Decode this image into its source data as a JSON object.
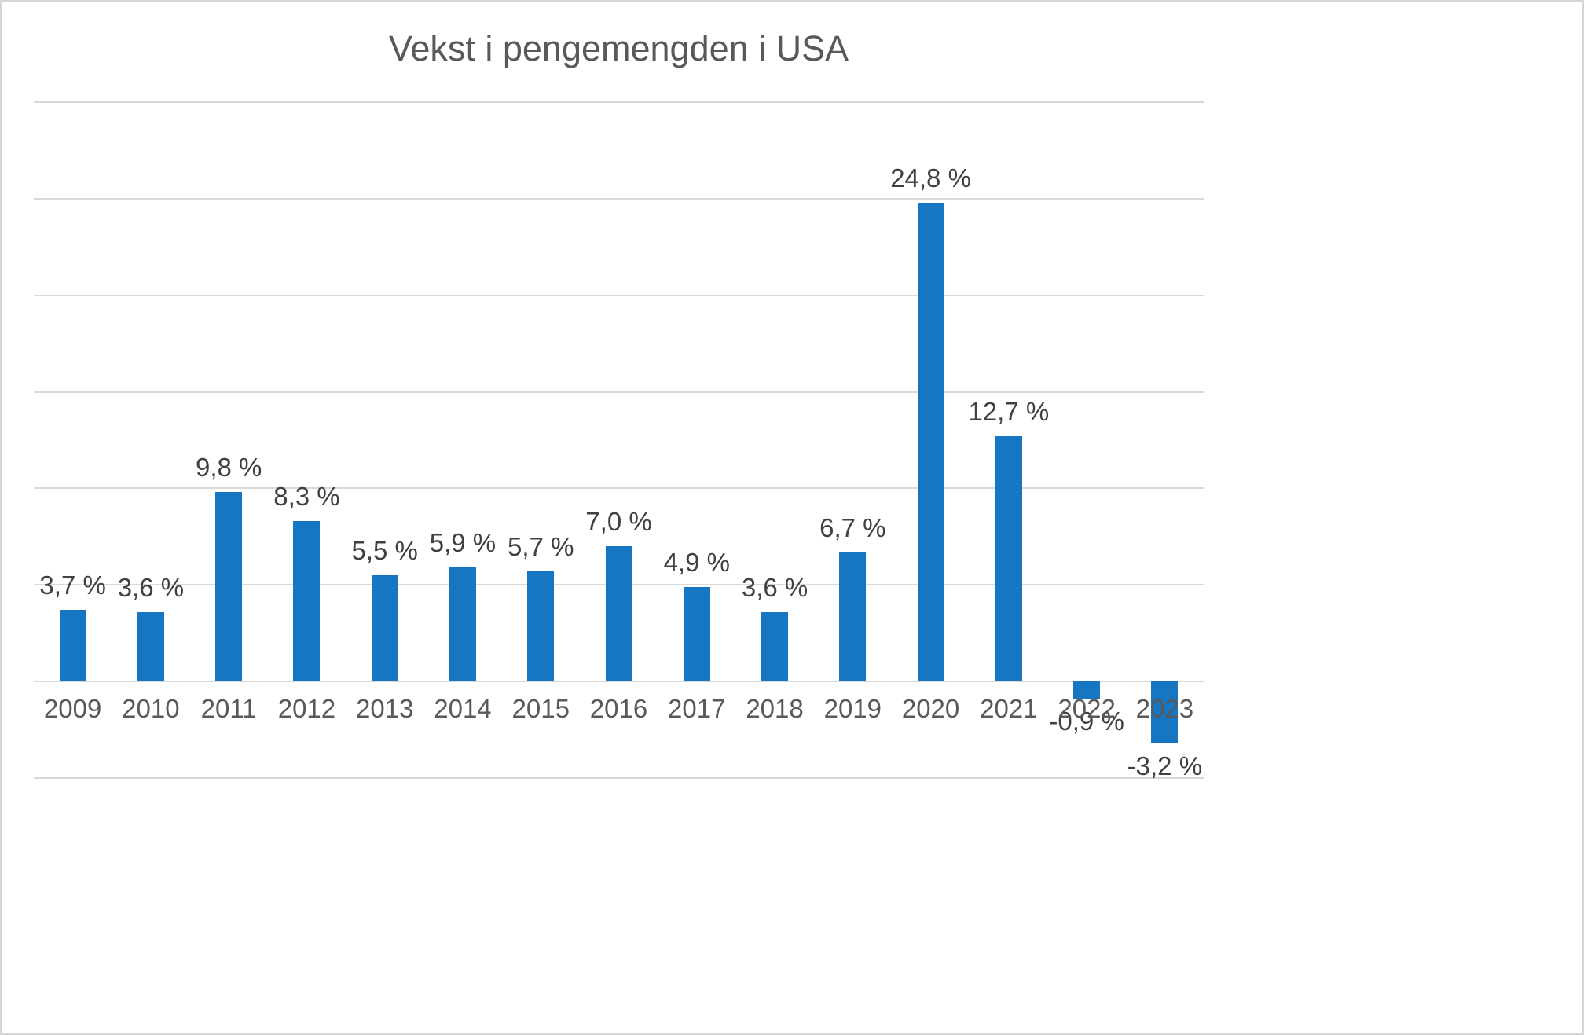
{
  "chart_data": {
    "type": "bar",
    "title": "Vekst i pengemengden i USA",
    "categories": [
      "2009",
      "2010",
      "2011",
      "2012",
      "2013",
      "2014",
      "2015",
      "2016",
      "2017",
      "2018",
      "2019",
      "2020",
      "2021",
      "2022",
      "2023"
    ],
    "values": [
      3.7,
      3.6,
      9.8,
      8.3,
      5.5,
      5.9,
      5.7,
      7.0,
      4.9,
      3.6,
      6.7,
      24.8,
      12.7,
      -0.9,
      -3.2
    ],
    "labels": [
      "3,7 %",
      "3,6 %",
      "9,8 %",
      "8,3 %",
      "5,5 %",
      "5,9 %",
      "5,7 %",
      "7,0 %",
      "4,9 %",
      "3,6 %",
      "6,7 %",
      "24,8 %",
      "12,7 %",
      "-0,9 %",
      "-3,2 %"
    ],
    "xlabel": "",
    "ylabel": "",
    "ylim": [
      -5,
      30
    ],
    "gridline_step": 5,
    "grid": true,
    "legend": false,
    "colors": {
      "bar": "#1676C1",
      "title": "#595959",
      "data_label": "#404040",
      "tick_label": "#595959",
      "gridline": "#D9D9D9",
      "border": "#D6D6D6",
      "background": "#FFFFFF"
    }
  }
}
